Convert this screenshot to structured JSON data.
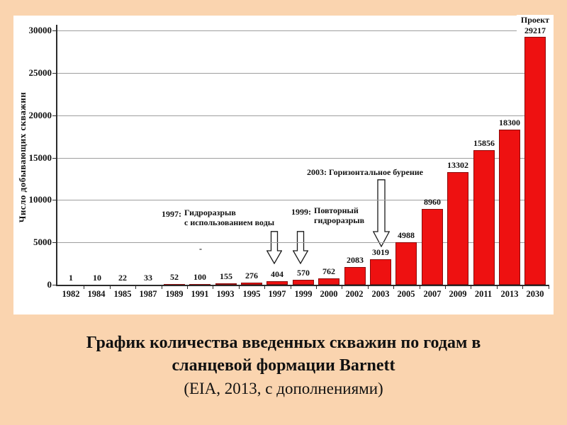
{
  "slide": {
    "background_color": "#FAD4AF",
    "stray_mark": "-",
    "caption": {
      "line1": "График количества введенных скважин по годам в",
      "line2": "сланцевой формации Barnett",
      "line3": "(EIA, 2013, с дополнениями)"
    }
  },
  "chart_data": {
    "type": "bar",
    "title": "",
    "xlabel": "",
    "ylabel": "Число добывающих скважин",
    "categories": [
      "1982",
      "1984",
      "1985",
      "1987",
      "1989",
      "1991",
      "1993",
      "1995",
      "1997",
      "1999",
      "2000",
      "2002",
      "2003",
      "2005",
      "2007",
      "2009",
      "2011",
      "2013",
      "2030"
    ],
    "values": [
      1,
      10,
      22,
      33,
      52,
      100,
      155,
      276,
      404,
      570,
      762,
      2083,
      3019,
      4988,
      8960,
      13302,
      15856,
      18300,
      29217
    ],
    "ylim": [
      0,
      30000
    ],
    "yticks": [
      0,
      5000,
      10000,
      15000,
      20000,
      25000,
      30000
    ],
    "grid": true,
    "legend": "none",
    "bar_color": "#EE1111",
    "bar_border_color": "#8B0A0A",
    "last_bar_label_prefix": "Проект",
    "annotations": [
      {
        "year_prefix": "1997:",
        "lines": [
          "Гидроразрыв",
          "с использованием воды"
        ],
        "target_category": "1997"
      },
      {
        "year_prefix": "1999:",
        "lines": [
          "Повторный",
          "гидроразрыв"
        ],
        "target_category": "1999"
      },
      {
        "year_prefix": "",
        "lines": [
          "2003: Горизонтальное бурение"
        ],
        "target_category": "2003"
      }
    ]
  }
}
